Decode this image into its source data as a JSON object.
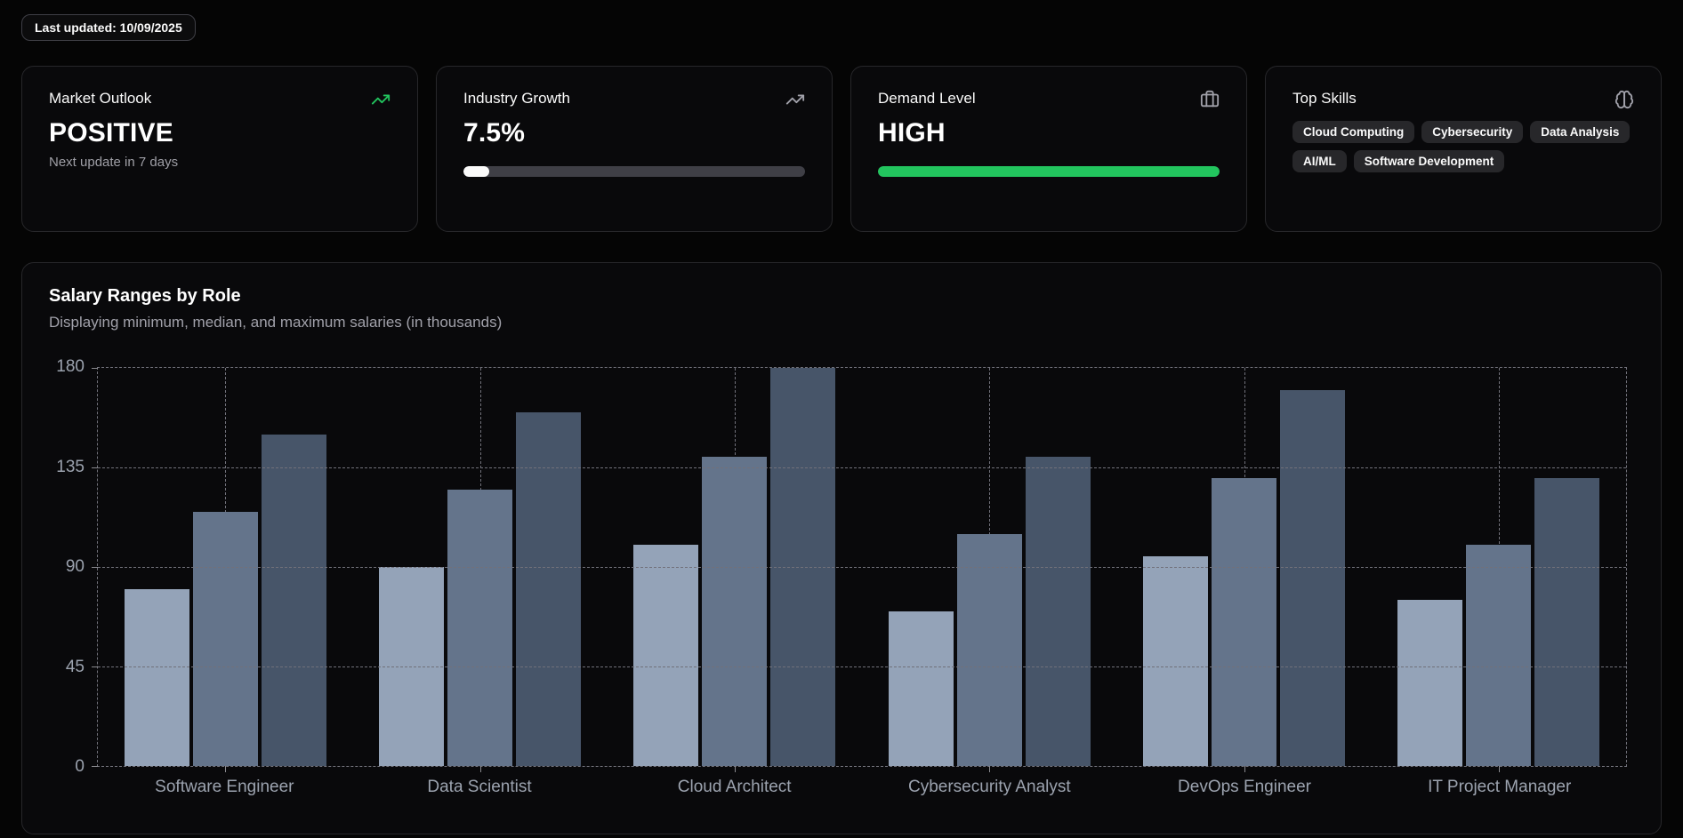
{
  "page": {
    "last_updated_label": "Last updated: 10/09/2025",
    "background_color": "#050505",
    "card_border_color": "#27272a",
    "accent_green": "#22c55e"
  },
  "cards": {
    "market_outlook": {
      "title": "Market Outlook",
      "value": "POSITIVE",
      "subtitle": "Next update in 7 days",
      "icon": "trending-up-icon",
      "icon_color": "#22c55e"
    },
    "industry_growth": {
      "title": "Industry Growth",
      "value": "7.5%",
      "icon": "trending-up-icon",
      "icon_color": "#a1a1aa",
      "progress_percent": 7.5,
      "progress_fill_color": "#fafafa",
      "progress_track_color": "#3f3f46"
    },
    "demand_level": {
      "title": "Demand Level",
      "value": "HIGH",
      "icon": "briefcase-icon",
      "icon_color": "#a1a1aa",
      "progress_percent": 100,
      "progress_fill_color": "#22c55e",
      "progress_track_color": "#3f3f46"
    },
    "top_skills": {
      "title": "Top Skills",
      "icon": "brain-icon",
      "icon_color": "#a1a1aa",
      "skills": [
        "Cloud Computing",
        "Cybersecurity",
        "Data Analysis",
        "AI/ML",
        "Software Development"
      ]
    }
  },
  "chart_card": {
    "title": "Salary Ranges by Role",
    "subtitle": "Displaying minimum, median, and maximum salaries (in thousands)"
  },
  "chart_data": {
    "type": "bar",
    "title": "Salary Ranges by Role",
    "subtitle": "Displaying minimum, median, and maximum salaries (in thousands)",
    "categories": [
      "Software Engineer",
      "Data Scientist",
      "Cloud Architect",
      "Cybersecurity Analyst",
      "DevOps Engineer",
      "IT Project Manager"
    ],
    "series": [
      {
        "name": "minimum",
        "color": "#94a3b8",
        "values": [
          80,
          90,
          100,
          70,
          95,
          75
        ]
      },
      {
        "name": "median",
        "color": "#64748b",
        "values": [
          115,
          125,
          140,
          105,
          130,
          100
        ]
      },
      {
        "name": "maximum",
        "color": "#475569",
        "values": [
          150,
          160,
          180,
          140,
          170,
          130
        ]
      }
    ],
    "xlabel": "",
    "ylabel": "",
    "ylim": [
      0,
      180
    ],
    "yticks": [
      0,
      45,
      90,
      135,
      180
    ],
    "grid": "dashed",
    "legend": "none"
  }
}
